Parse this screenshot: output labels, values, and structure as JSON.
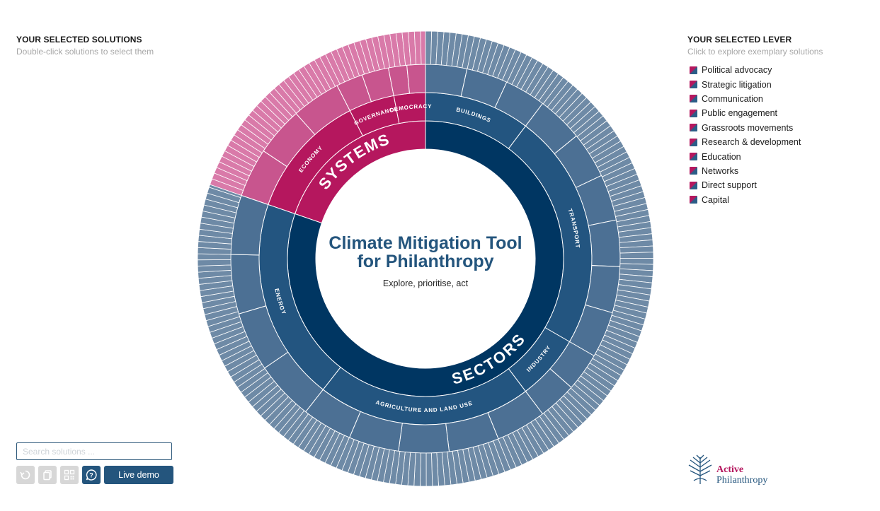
{
  "left_panel": {
    "title": "YOUR SELECTED SOLUTIONS",
    "subtitle": "Double-click solutions to select them"
  },
  "right_panel": {
    "title": "YOUR SELECTED LEVER",
    "subtitle": "Click to explore exemplary solutions",
    "levers": [
      "Political advocacy",
      "Strategic litigation",
      "Communication",
      "Public engagement",
      "Grassroots movements",
      "Research & development",
      "Education",
      "Networks",
      "Direct support",
      "Capital"
    ]
  },
  "center": {
    "title_line1": "Climate Mitigation Tool",
    "title_line2": "for Philanthropy",
    "subtitle": "Explore, prioritise, act"
  },
  "wheel": {
    "systems_label": "SYSTEMS",
    "sectors_label": "SECTORS",
    "system_categories": [
      "ECONOMY",
      "GOVERNANCE",
      "DEMOCRACY"
    ],
    "sector_categories": [
      "BUILDINGS",
      "TRANSPORT",
      "INDUSTRY",
      "AGRICULTURE AND LAND USE",
      "ENERGY"
    ],
    "colors": {
      "systems_dark": "#b5175e",
      "systems_mid": "#c8558e",
      "systems_light": "#d97aa9",
      "sectors_dark": "#003662",
      "sectors_mid": "#235580",
      "sectors_light": "#4c7094",
      "sectors_outer": "#6e8aa6"
    }
  },
  "search": {
    "placeholder": "Search solutions ..."
  },
  "toolbar": {
    "icons": [
      "reset-icon",
      "copy-icon",
      "qr-code-icon",
      "help-icon"
    ],
    "live_demo_label": "Live demo"
  },
  "logo": {
    "line1": "Active",
    "line2": "Philanthropy"
  }
}
